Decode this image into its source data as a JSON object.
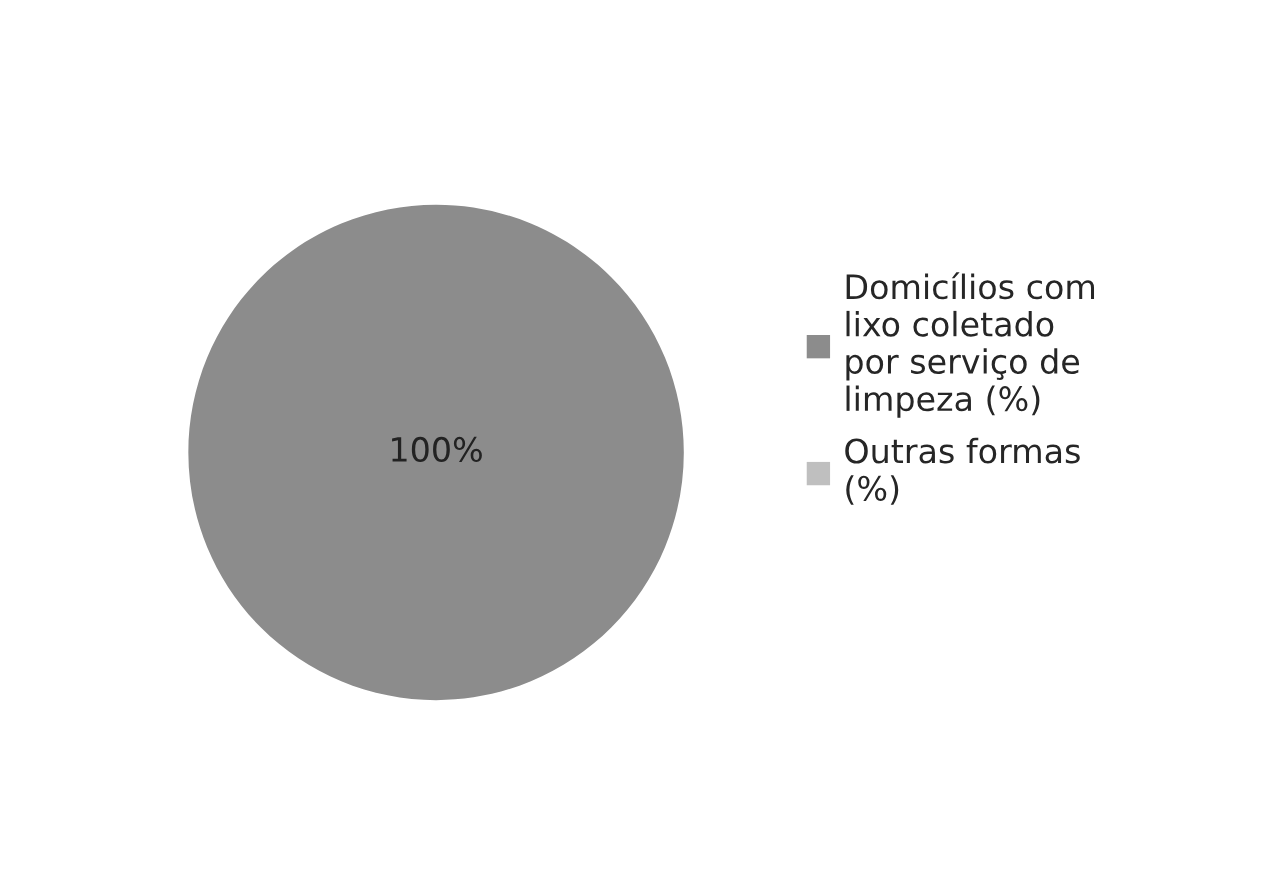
{
  "chart_data": {
    "type": "pie",
    "categories": [
      "Domicílios com\nlixo coletado\npor serviço de\nlimpeza (%)",
      "Outras formas\n(%)"
    ],
    "values": [
      100,
      0
    ],
    "colors": [
      "#8c8c8c",
      "#bfbfbf"
    ],
    "value_labels": [
      "100%",
      null
    ],
    "legend": "right"
  }
}
